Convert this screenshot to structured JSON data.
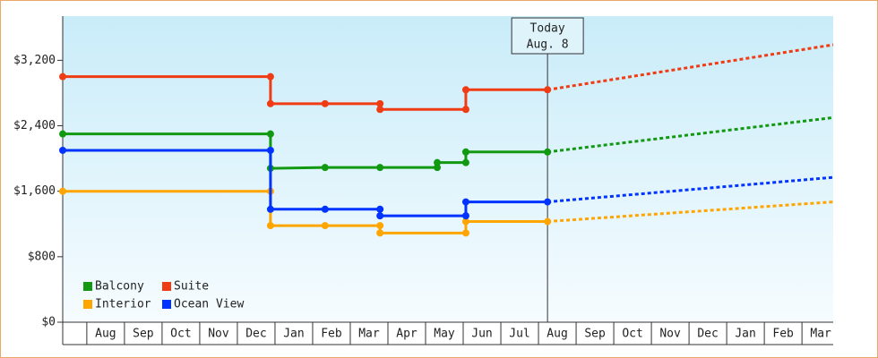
{
  "chart_data": {
    "type": "step-line",
    "annotation": {
      "x": 12.24,
      "lines": [
        "Today",
        "Aug. 8"
      ]
    },
    "xlim": [
      -0.64,
      19.83
    ],
    "xticks": [
      {
        "value": 0.5,
        "label": "Aug"
      },
      {
        "value": 1.5,
        "label": "Sep"
      },
      {
        "value": 2.5,
        "label": "Oct"
      },
      {
        "value": 3.5,
        "label": "Nov"
      },
      {
        "value": 4.5,
        "label": "Dec"
      },
      {
        "value": 5.5,
        "label": "Jan"
      },
      {
        "value": 6.5,
        "label": "Feb"
      },
      {
        "value": 7.5,
        "label": "Mar"
      },
      {
        "value": 8.5,
        "label": "Apr"
      },
      {
        "value": 9.5,
        "label": "May"
      },
      {
        "value": 10.5,
        "label": "Jun"
      },
      {
        "value": 11.5,
        "label": "Jul"
      },
      {
        "value": 12.5,
        "label": "Aug"
      },
      {
        "value": 13.5,
        "label": "Sep"
      },
      {
        "value": 14.5,
        "label": "Oct"
      },
      {
        "value": 15.5,
        "label": "Nov"
      },
      {
        "value": 16.5,
        "label": "Dec"
      },
      {
        "value": 17.5,
        "label": "Jan"
      },
      {
        "value": 18.5,
        "label": "Feb"
      },
      {
        "value": 19.5,
        "label": "Mar"
      }
    ],
    "ylim": [
      0,
      3740
    ],
    "yticks": [
      {
        "value": 0,
        "label": "$0"
      },
      {
        "value": 800,
        "label": "$800"
      },
      {
        "value": 1600,
        "label": "$1,600"
      },
      {
        "value": 2400,
        "label": "$2,400"
      },
      {
        "value": 3200,
        "label": "$3,200"
      }
    ],
    "grid": false,
    "legend": "bottom-left",
    "series": [
      {
        "name": "Balcony",
        "color": "#119911",
        "x": [
          -0.64,
          4.88,
          4.88,
          6.33,
          7.79,
          9.31,
          9.31,
          10.07,
          10.07,
          12.24
        ],
        "values": [
          2300,
          2300,
          1880,
          1890,
          1890,
          1890,
          1950,
          1950,
          2080,
          2080
        ],
        "forecast": {
          "x": [
            12.24,
            19.83
          ],
          "values": [
            2080,
            2500
          ]
        }
      },
      {
        "name": "Suite",
        "color": "#f03c14",
        "x": [
          -0.64,
          4.88,
          4.88,
          6.33,
          7.79,
          7.79,
          10.07,
          10.07,
          12.24
        ],
        "values": [
          3000,
          3000,
          2670,
          2670,
          2670,
          2600,
          2600,
          2840,
          2840
        ],
        "forecast": {
          "x": [
            12.24,
            19.83
          ],
          "values": [
            2840,
            3390
          ]
        }
      },
      {
        "name": "Interior",
        "color": "#ffa500",
        "x": [
          -0.64,
          4.88,
          4.88,
          6.33,
          7.79,
          7.79,
          10.07,
          10.07,
          12.24
        ],
        "values": [
          1600,
          1600,
          1180,
          1180,
          1180,
          1090,
          1090,
          1230,
          1230
        ],
        "forecast": {
          "x": [
            12.24,
            19.83
          ],
          "values": [
            1230,
            1470
          ]
        }
      },
      {
        "name": "Ocean View",
        "color": "#0033ff",
        "x": [
          -0.64,
          4.88,
          4.88,
          6.33,
          7.79,
          7.79,
          10.07,
          10.07,
          12.24
        ],
        "values": [
          2100,
          2100,
          1380,
          1380,
          1380,
          1300,
          1300,
          1470,
          1470
        ],
        "forecast": {
          "x": [
            12.24,
            19.83
          ],
          "values": [
            1470,
            1770
          ]
        }
      }
    ]
  }
}
